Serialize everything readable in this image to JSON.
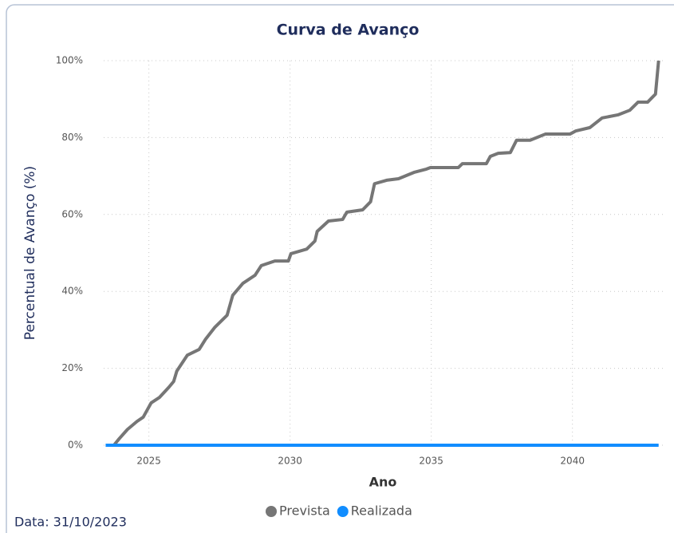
{
  "chart_data": {
    "type": "line",
    "title": "Curva de Avanço",
    "x_label": "Ano",
    "y_label": "Percentual de Avanço (%)",
    "footnote": "Data: 31/10/2023",
    "xlim": [
      2023.4,
      2043.2
    ],
    "xticks": [
      2025,
      2030,
      2035,
      2040
    ],
    "ylim": [
      0,
      100
    ],
    "yticks": [
      {
        "value": 0,
        "label": "0%"
      },
      {
        "value": 20,
        "label": "20%"
      },
      {
        "value": 40,
        "label": "40%"
      },
      {
        "value": 60,
        "label": "60%"
      },
      {
        "value": 80,
        "label": "80%"
      },
      {
        "value": 100,
        "label": "100%"
      }
    ],
    "grid": true,
    "legend": "bottom",
    "series": [
      {
        "name": "Prevista",
        "color": "#767676",
        "x": [
          2023.47,
          2023.76,
          2023.95,
          2024.24,
          2024.58,
          2024.8,
          2025.08,
          2025.37,
          2025.71,
          2025.88,
          2025.99,
          2026.36,
          2026.78,
          2027.01,
          2027.34,
          2027.77,
          2027.97,
          2028.33,
          2028.76,
          2028.98,
          2029.46,
          2029.94,
          2030.03,
          2030.59,
          2030.88,
          2030.96,
          2031.36,
          2031.86,
          2032.01,
          2032.57,
          2032.85,
          2032.99,
          2033.42,
          2033.84,
          2034.41,
          2034.83,
          2034.97,
          2035.96,
          2036.1,
          2036.95,
          2037.09,
          2037.37,
          2037.8,
          2038.02,
          2038.5,
          2039.04,
          2039.91,
          2040.11,
          2040.62,
          2041.05,
          2041.61,
          2042.03,
          2042.32,
          2042.66,
          2042.94,
          2043.05
        ],
        "values": [
          0,
          0,
          1.7,
          4.1,
          6.2,
          7.3,
          11,
          12.4,
          15.1,
          16.6,
          19.3,
          23.4,
          24.9,
          27.6,
          30.7,
          33.8,
          39,
          42.1,
          44.2,
          46.7,
          47.9,
          47.9,
          49.8,
          51,
          53.1,
          55.6,
          58.3,
          58.7,
          60.6,
          61.2,
          63.3,
          68,
          68.9,
          69.3,
          71,
          71.8,
          72.2,
          72.2,
          73.2,
          73.2,
          75.1,
          75.9,
          76.1,
          79.3,
          79.3,
          80.9,
          80.9,
          81.7,
          82.6,
          85.1,
          85.9,
          87.1,
          89.2,
          89.2,
          91.3,
          100
        ]
      },
      {
        "name": "Realizada",
        "color": "#118dff",
        "x": [
          2023.47,
          2043.05
        ],
        "values": [
          0,
          0
        ]
      }
    ]
  }
}
